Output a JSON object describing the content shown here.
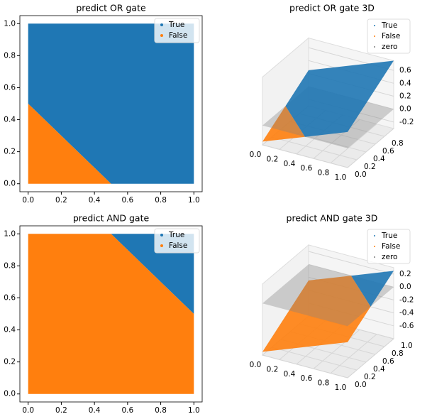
{
  "chart_data": [
    {
      "type": "region",
      "title": "predict OR gate",
      "xlim": [
        -0.05,
        1.05
      ],
      "ylim": [
        -0.05,
        1.05
      ],
      "xticks": [
        {
          "value": 0,
          "label": "0.0"
        },
        {
          "value": 0.2,
          "label": "0.2"
        },
        {
          "value": 0.4,
          "label": "0.4"
        },
        {
          "value": 0.6,
          "label": "0.6"
        },
        {
          "value": 0.8,
          "label": "0.8"
        },
        {
          "value": 1,
          "label": "1.0"
        }
      ],
      "yticks": [
        {
          "value": 0,
          "label": "0.0"
        },
        {
          "value": 0.2,
          "label": "0.2"
        },
        {
          "value": 0.4,
          "label": "0.4"
        },
        {
          "value": 0.6,
          "label": "0.6"
        },
        {
          "value": 0.8,
          "label": "0.8"
        },
        {
          "value": 1,
          "label": "1.0"
        }
      ],
      "legend": "upper right",
      "series": [
        {
          "name": "True",
          "color": "#1f77b4",
          "x": [
            0,
            0.5,
            1,
            1,
            0
          ],
          "y": [
            0.5,
            0,
            0,
            1,
            1
          ]
        },
        {
          "name": "False",
          "color": "#ff7f0e",
          "x": [
            0,
            0.5,
            0
          ],
          "y": [
            0,
            0,
            0.5
          ]
        }
      ]
    },
    {
      "type": "surface3d",
      "title": "predict OR gate 3D",
      "xlim": [
        0,
        1
      ],
      "ylim": [
        0,
        1
      ],
      "zlim": [
        -0.3,
        0.75
      ],
      "xticks": [
        {
          "value": 0,
          "label": "0.0"
        },
        {
          "value": 0.2,
          "label": "0.2"
        },
        {
          "value": 0.4,
          "label": "0.4"
        },
        {
          "value": 0.6,
          "label": "0.6"
        },
        {
          "value": 0.8,
          "label": "0.8"
        },
        {
          "value": 1,
          "label": "1.0"
        }
      ],
      "yticks": [
        {
          "value": 0,
          "label": "0.0"
        },
        {
          "value": 0.2,
          "label": "0.2"
        },
        {
          "value": 0.4,
          "label": "0.4"
        },
        {
          "value": 0.6,
          "label": "0.6"
        },
        {
          "value": 0.8,
          "label": "0.8"
        }
      ],
      "zticks": [
        -0.2,
        {
          "value": 0,
          "label": "0.0"
        },
        0.2,
        0.4,
        0.6
      ],
      "legend": "upper right",
      "surface": {
        "x": [
          0,
          1,
          1,
          0
        ],
        "y": [
          0,
          0,
          1,
          1
        ],
        "z": [
          -0.25,
          0.25,
          0.75,
          0.25
        ]
      },
      "series": [
        {
          "name": "True",
          "color": "#1f77b4"
        },
        {
          "name": "False",
          "color": "#ff7f0e"
        },
        {
          "name": "zero",
          "color": "#808080"
        }
      ]
    },
    {
      "type": "region",
      "title": "predict AND gate",
      "xlim": [
        -0.05,
        1.05
      ],
      "ylim": [
        -0.05,
        1.05
      ],
      "xticks": [
        {
          "value": 0,
          "label": "0.0"
        },
        {
          "value": 0.2,
          "label": "0.2"
        },
        {
          "value": 0.4,
          "label": "0.4"
        },
        {
          "value": 0.6,
          "label": "0.6"
        },
        {
          "value": 0.8,
          "label": "0.8"
        },
        {
          "value": 1,
          "label": "1.0"
        }
      ],
      "yticks": [
        {
          "value": 0,
          "label": "0.0"
        },
        {
          "value": 0.2,
          "label": "0.2"
        },
        {
          "value": 0.4,
          "label": "0.4"
        },
        {
          "value": 0.6,
          "label": "0.6"
        },
        {
          "value": 0.8,
          "label": "0.8"
        },
        {
          "value": 1,
          "label": "1.0"
        }
      ],
      "legend": "upper right",
      "series": [
        {
          "name": "True",
          "color": "#1f77b4",
          "x": [
            0.5,
            1,
            1
          ],
          "y": [
            1,
            0.5,
            1
          ]
        },
        {
          "name": "False",
          "color": "#ff7f0e",
          "x": [
            0,
            1,
            1,
            0.5,
            0
          ],
          "y": [
            0,
            0,
            0.5,
            1,
            1
          ]
        }
      ]
    },
    {
      "type": "surface3d",
      "title": "predict AND gate 3D",
      "xlim": [
        0,
        1
      ],
      "ylim": [
        0,
        1
      ],
      "zlim": [
        -0.8,
        0.3
      ],
      "xticks": [
        {
          "value": 0,
          "label": "0.0"
        },
        {
          "value": 0.2,
          "label": "0.2"
        },
        {
          "value": 0.4,
          "label": "0.4"
        },
        {
          "value": 0.6,
          "label": "0.6"
        },
        {
          "value": 0.8,
          "label": "0.8"
        },
        {
          "value": 1,
          "label": "1.0"
        }
      ],
      "yticks": [
        {
          "value": 0,
          "label": "0.0"
        },
        {
          "value": 0.2,
          "label": "0.2"
        },
        {
          "value": 0.4,
          "label": "0.4"
        },
        {
          "value": 0.6,
          "label": "0.6"
        },
        {
          "value": 0.8,
          "label": "0.8"
        },
        {
          "value": 1,
          "label": "1.0"
        }
      ],
      "zticks": [
        -0.6,
        -0.4,
        -0.2,
        {
          "value": 0,
          "label": "0.0"
        },
        0.2
      ],
      "legend": "upper right",
      "surface": {
        "x": [
          0,
          1,
          1,
          0
        ],
        "y": [
          0,
          0,
          1,
          1
        ],
        "z": [
          -0.75,
          -0.25,
          0.25,
          -0.25
        ]
      },
      "series": [
        {
          "name": "True",
          "color": "#1f77b4"
        },
        {
          "name": "False",
          "color": "#ff7f0e"
        },
        {
          "name": "zero",
          "color": "#808080"
        }
      ]
    }
  ]
}
